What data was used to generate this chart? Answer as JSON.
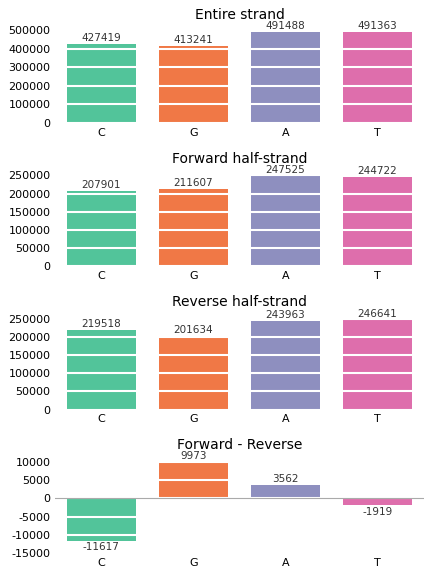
{
  "subplots": [
    {
      "title": "Entire strand",
      "categories": [
        "C",
        "G",
        "A",
        "T"
      ],
      "values": [
        427419,
        413241,
        491488,
        491363
      ],
      "ylim": [
        0,
        530000
      ],
      "yticks": [
        0,
        100000,
        200000,
        300000,
        400000,
        500000
      ]
    },
    {
      "title": "Forward half-strand",
      "categories": [
        "C",
        "G",
        "A",
        "T"
      ],
      "values": [
        207901,
        211607,
        247525,
        244722
      ],
      "ylim": [
        0,
        270000
      ],
      "yticks": [
        0,
        50000,
        100000,
        150000,
        200000,
        250000
      ]
    },
    {
      "title": "Reverse half-strand",
      "categories": [
        "C",
        "G",
        "A",
        "T"
      ],
      "values": [
        219518,
        201634,
        243963,
        246641
      ],
      "ylim": [
        0,
        270000
      ],
      "yticks": [
        0,
        50000,
        100000,
        150000,
        200000,
        250000
      ]
    },
    {
      "title": "Forward - Reverse",
      "categories": [
        "C",
        "G",
        "A",
        "T"
      ],
      "values": [
        -11617,
        9973,
        3562,
        -1919
      ],
      "ylim": [
        -15000,
        12000
      ],
      "yticks": [
        -15000,
        -10000,
        -5000,
        0,
        5000,
        10000
      ]
    }
  ],
  "bar_colors": [
    "#52c49a",
    "#f07846",
    "#8e8fbf",
    "#de6eac"
  ],
  "bar_width": 0.75,
  "bg_color": "#ffffff",
  "grid_color": "white",
  "grid_linewidth": 1.5,
  "label_fontsize": 8,
  "title_fontsize": 10,
  "annotation_fontsize": 7.5
}
